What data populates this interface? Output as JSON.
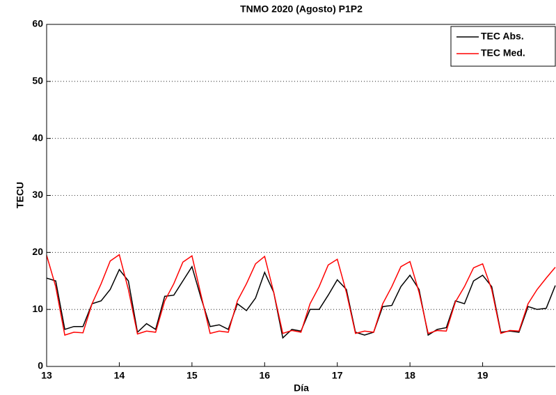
{
  "chart_data": {
    "type": "line",
    "title": "TNMO 2020 (Agosto) P1P2",
    "xlabel": "Día",
    "ylabel": "TECU",
    "x": [
      13,
      13.125,
      13.25,
      13.375,
      13.5,
      13.625,
      13.75,
      13.875,
      14,
      14.125,
      14.25,
      14.375,
      14.5,
      14.625,
      14.75,
      14.875,
      15,
      15.125,
      15.25,
      15.375,
      15.5,
      15.625,
      15.75,
      15.875,
      16,
      16.125,
      16.25,
      16.375,
      16.5,
      16.625,
      16.75,
      16.875,
      17,
      17.125,
      17.25,
      17.375,
      17.5,
      17.625,
      17.75,
      17.875,
      18,
      18.125,
      18.25,
      18.375,
      18.5,
      18.625,
      18.75,
      18.875,
      19,
      19.125,
      19.25,
      19.375,
      19.5,
      19.625,
      19.75,
      19.875,
      20
    ],
    "series": [
      {
        "name": "TEC Abs.",
        "color": "#000000",
        "values": [
          15.5,
          15,
          6.5,
          7,
          7,
          11,
          11.5,
          13.5,
          17,
          15,
          6,
          7.5,
          6.5,
          12.3,
          12.5,
          15,
          17.5,
          12,
          7,
          7.3,
          6.5,
          11,
          9.8,
          12,
          16.5,
          13,
          5,
          6.5,
          6.2,
          10,
          10,
          12.5,
          15.2,
          13.5,
          6,
          5.5,
          6,
          10.5,
          10.7,
          14,
          16,
          13.5,
          5.5,
          6.5,
          6.8,
          11.5,
          11,
          15,
          16,
          14,
          6,
          6.2,
          6,
          10.5,
          10,
          10.2,
          14.2
        ]
      },
      {
        "name": "TEC Med.",
        "color": "#ff0000",
        "values": [
          19.5,
          14,
          5.5,
          6,
          5.9,
          11,
          14.5,
          18.5,
          19.6,
          13.5,
          5.7,
          6.2,
          6,
          11.5,
          14.5,
          18.3,
          19.4,
          12.5,
          5.8,
          6.2,
          6,
          11.5,
          14.5,
          18,
          19.3,
          13,
          5.8,
          6.3,
          6,
          11,
          14,
          17.8,
          18.8,
          13,
          5.8,
          6.2,
          6,
          11,
          14,
          17.5,
          18.4,
          13,
          5.8,
          6.3,
          6.2,
          11.3,
          14,
          17.3,
          18,
          13.5,
          5.8,
          6.3,
          6.2,
          11,
          13.5,
          15.5,
          17.4
        ]
      }
    ],
    "xlim": [
      13,
      20
    ],
    "xticks": [
      13,
      14,
      15,
      16,
      17,
      18,
      19
    ],
    "ylim": [
      0,
      60
    ],
    "yticks": [
      0,
      10,
      20,
      30,
      40,
      50,
      60
    ],
    "grid": "y",
    "legend": "northeast"
  }
}
